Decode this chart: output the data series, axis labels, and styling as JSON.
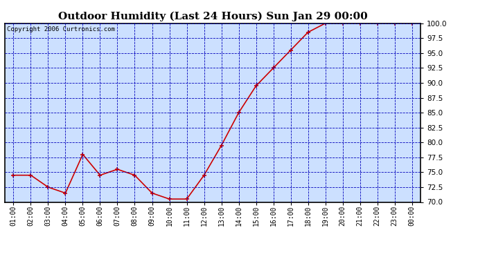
{
  "title": "Outdoor Humidity (Last 24 Hours) Sun Jan 29 00:00",
  "copyright": "Copyright 2006 Curtronics.com",
  "x_labels": [
    "01:00",
    "02:00",
    "03:00",
    "04:00",
    "05:00",
    "06:00",
    "07:00",
    "08:00",
    "09:00",
    "10:00",
    "11:00",
    "12:00",
    "13:00",
    "14:00",
    "15:00",
    "16:00",
    "17:00",
    "18:00",
    "19:00",
    "20:00",
    "21:00",
    "22:00",
    "23:00",
    "00:00"
  ],
  "y_values": [
    74.5,
    74.5,
    72.5,
    71.5,
    78.0,
    74.5,
    75.5,
    74.5,
    71.5,
    70.5,
    70.5,
    74.5,
    79.5,
    85.0,
    89.5,
    92.5,
    95.5,
    98.5,
    100.0,
    100.0,
    100.0,
    100.0,
    100.0,
    100.0
  ],
  "ylim_min": 70.0,
  "ylim_max": 100.0,
  "y_ticks": [
    70.0,
    72.5,
    75.0,
    77.5,
    80.0,
    82.5,
    85.0,
    87.5,
    90.0,
    92.5,
    95.0,
    97.5,
    100.0
  ],
  "line_color": "#cc0000",
  "marker_color": "#cc0000",
  "grid_color": "#0000bb",
  "plot_bg": "#cce0ff",
  "outer_bg": "#ffffff",
  "title_fontsize": 11,
  "copyright_fontsize": 6.5,
  "tick_fontsize": 7,
  "ytick_fontsize": 7.5
}
